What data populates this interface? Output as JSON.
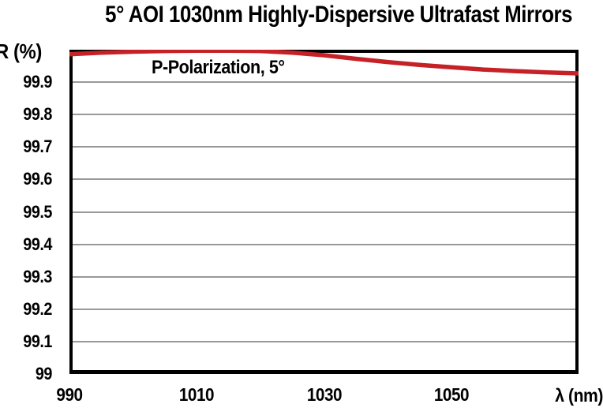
{
  "header": {
    "title": "5° AOI 1030nm Highly-Dispersive Ultrafast Mirrors"
  },
  "chart_data": {
    "type": "line",
    "title": "5° AOI 1030nm Highly-Dispersive Ultrafast Mirrors",
    "xlabel": "λ (nm)",
    "ylabel": "R (%)",
    "xlim": [
      990,
      1070
    ],
    "ylim": [
      99,
      100
    ],
    "x_ticks": [
      990,
      1010,
      1030,
      1050
    ],
    "y_ticks": [
      {
        "value": 99.9,
        "label": "99.9"
      },
      {
        "value": 99.8,
        "label": "99.8"
      },
      {
        "value": 99.7,
        "label": "99.7"
      },
      {
        "value": 99.6,
        "label": "99.6"
      },
      {
        "value": 99.5,
        "label": "99.5"
      },
      {
        "value": 99.4,
        "label": "99.4"
      },
      {
        "value": 99.3,
        "label": "99.3"
      },
      {
        "value": 99.2,
        "label": "99.2"
      },
      {
        "value": 99.1,
        "label": "99.1"
      },
      {
        "value": 99.0,
        "label": "99"
      }
    ],
    "grid": "horizontal gray lines every 0.1%",
    "legend": [
      {
        "label": "P-Polarization, 5°",
        "color": "#c52127",
        "position": "inside top-left"
      }
    ],
    "series": [
      {
        "name": "P-Polarization, 5°",
        "color": "#c52127",
        "x": [
          990,
          995,
          1000,
          1005,
          1010,
          1015,
          1020,
          1025,
          1030,
          1035,
          1040,
          1045,
          1050,
          1055,
          1060,
          1065,
          1070
        ],
        "y": [
          99.986,
          99.991,
          99.994,
          99.996,
          99.997,
          99.997,
          99.996,
          99.991,
          99.983,
          99.972,
          99.962,
          99.953,
          99.946,
          99.939,
          99.934,
          99.93,
          99.927
        ]
      }
    ]
  },
  "colors": {
    "curve_red": "#c52127",
    "grid_gray": "#999999",
    "axis_black": "#000000",
    "background": "#ffffff"
  }
}
